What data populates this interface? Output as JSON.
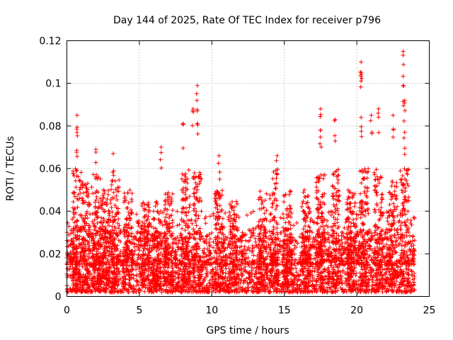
{
  "chart_data": {
    "type": "scatter",
    "title": "Day 144 of 2025, Rate Of TEC Index for receiver p796",
    "xlabel": "GPS time / hours",
    "ylabel": "ROTI / TECUs",
    "xlim": [
      0,
      25
    ],
    "ylim": [
      0,
      0.12
    ],
    "xticks": [
      0,
      5,
      10,
      15,
      20,
      25
    ],
    "yticks": [
      0,
      0.02,
      0.04,
      0.06,
      0.08,
      0.1,
      0.12
    ],
    "xtick_labels": [
      "0",
      "5",
      "10",
      "15",
      "20",
      "25"
    ],
    "ytick_labels": [
      "0",
      "0.02",
      "0.04",
      "0.06",
      "0.08",
      "0.1",
      "0.12"
    ],
    "grid": true,
    "marker": "+",
    "color": "#ff0000",
    "x_range_observed": [
      0,
      24
    ],
    "baseline_range": [
      0.002,
      0.03
    ],
    "notable_points": [
      {
        "x": 0.7,
        "y": 0.085
      },
      {
        "x": 0.7,
        "y": 0.077
      },
      {
        "x": 2.0,
        "y": 0.069
      },
      {
        "x": 3.2,
        "y": 0.067
      },
      {
        "x": 6.5,
        "y": 0.07
      },
      {
        "x": 8.0,
        "y": 0.081
      },
      {
        "x": 8.7,
        "y": 0.088
      },
      {
        "x": 9.0,
        "y": 0.099
      },
      {
        "x": 9.0,
        "y": 0.087
      },
      {
        "x": 10.5,
        "y": 0.066
      },
      {
        "x": 14.5,
        "y": 0.066
      },
      {
        "x": 17.5,
        "y": 0.088
      },
      {
        "x": 17.5,
        "y": 0.078
      },
      {
        "x": 18.5,
        "y": 0.083
      },
      {
        "x": 20.3,
        "y": 0.11
      },
      {
        "x": 20.3,
        "y": 0.104
      },
      {
        "x": 20.3,
        "y": 0.084
      },
      {
        "x": 21.0,
        "y": 0.085
      },
      {
        "x": 21.5,
        "y": 0.088
      },
      {
        "x": 22.5,
        "y": 0.085
      },
      {
        "x": 23.2,
        "y": 0.115
      },
      {
        "x": 23.2,
        "y": 0.099
      },
      {
        "x": 23.3,
        "y": 0.092
      },
      {
        "x": 23.3,
        "y": 0.077
      }
    ],
    "activity_bursts": [
      {
        "x": 0.7,
        "peak": 0.06
      },
      {
        "x": 1.3,
        "peak": 0.055
      },
      {
        "x": 2.0,
        "peak": 0.06
      },
      {
        "x": 2.6,
        "peak": 0.05
      },
      {
        "x": 3.3,
        "peak": 0.055
      },
      {
        "x": 4.2,
        "peak": 0.05
      },
      {
        "x": 5.4,
        "peak": 0.045
      },
      {
        "x": 6.2,
        "peak": 0.045
      },
      {
        "x": 7.0,
        "peak": 0.05
      },
      {
        "x": 8.2,
        "peak": 0.06
      },
      {
        "x": 9.0,
        "peak": 0.06
      },
      {
        "x": 10.5,
        "peak": 0.05
      },
      {
        "x": 11.5,
        "peak": 0.045
      },
      {
        "x": 13.5,
        "peak": 0.05
      },
      {
        "x": 14.3,
        "peak": 0.06
      },
      {
        "x": 15.2,
        "peak": 0.05
      },
      {
        "x": 16.5,
        "peak": 0.05
      },
      {
        "x": 17.5,
        "peak": 0.058
      },
      {
        "x": 18.5,
        "peak": 0.06
      },
      {
        "x": 19.6,
        "peak": 0.05
      },
      {
        "x": 20.5,
        "peak": 0.06
      },
      {
        "x": 21.5,
        "peak": 0.06
      },
      {
        "x": 22.5,
        "peak": 0.055
      },
      {
        "x": 23.3,
        "peak": 0.06
      }
    ]
  }
}
